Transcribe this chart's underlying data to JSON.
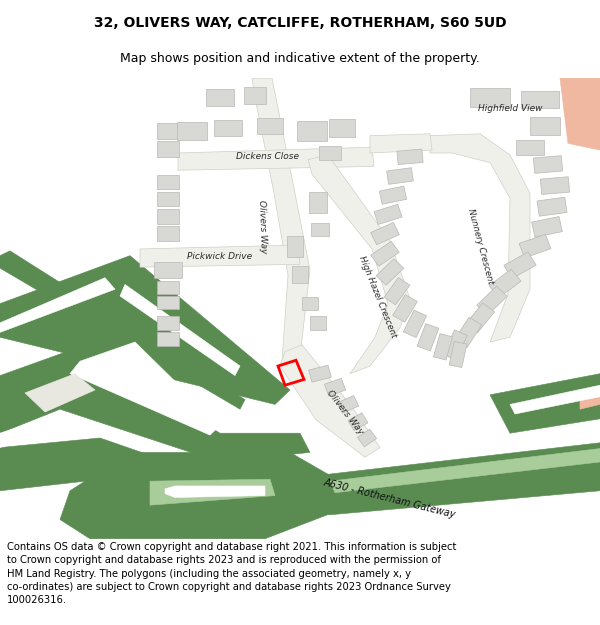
{
  "title_line1": "32, OLIVERS WAY, CATCLIFFE, ROTHERHAM, S60 5UD",
  "title_line2": "Map shows position and indicative extent of the property.",
  "footer_text": "Contains OS data © Crown copyright and database right 2021. This information is subject to Crown copyright and database rights 2023 and is reproduced with the permission of HM Land Registry. The polygons (including the associated geometry, namely x, y co-ordinates) are subject to Crown copyright and database rights 2023 Ordnance Survey 100026316.",
  "bg_color": "#ffffff",
  "map_bg": "#f7f7f5",
  "green_dark": "#5a8c52",
  "green_light": "#a8cc9a",
  "building_color": "#d8d8d4",
  "building_edge": "#b8b8b4",
  "road_color": "#f0f0eb",
  "road_edge": "#d0d0c8",
  "red_property": "#ff0000",
  "salmon_corner": "#f0b8a0",
  "title_fontsize": 10,
  "subtitle_fontsize": 9,
  "footer_fontsize": 7.2
}
